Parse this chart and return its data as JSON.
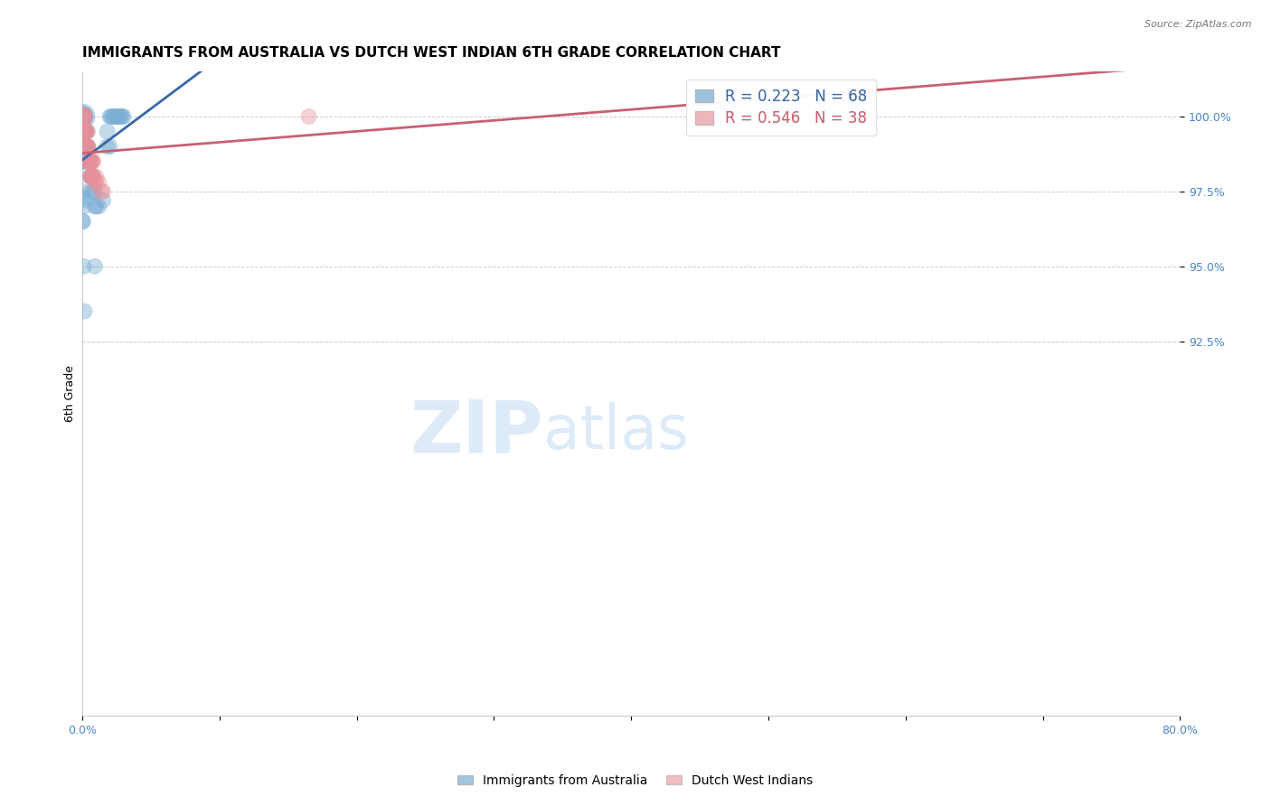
{
  "title": "IMMIGRANTS FROM AUSTRALIA VS DUTCH WEST INDIAN 6TH GRADE CORRELATION CHART",
  "source": "Source: ZipAtlas.com",
  "ylabel": "6th Grade",
  "xlim": [
    0.0,
    80.0
  ],
  "ylim": [
    80.0,
    101.5
  ],
  "yticks": [
    92.5,
    95.0,
    97.5,
    100.0
  ],
  "ytick_labels": [
    "92.5%",
    "95.0%",
    "97.5%",
    "100.0%"
  ],
  "legend_entries": [
    {
      "label": "R = 0.223   N = 68",
      "color": "#6fa8dc"
    },
    {
      "label": "R = 0.546   N = 38",
      "color": "#e06c7d"
    }
  ],
  "legend_labels": [
    "Immigrants from Australia",
    "Dutch West Indians"
  ],
  "blue_color": "#7bafd4",
  "pink_color": "#e8909a",
  "blue_line_color": "#3a67a8",
  "pink_line_color": "#c96070",
  "watermark_zip": "ZIP",
  "watermark_atlas": "atlas",
  "watermark_color": "#ddeaf7",
  "tick_color": "#4a86c8",
  "grid_color": "#cccccc",
  "title_fontsize": 11,
  "axis_label_fontsize": 9,
  "tick_fontsize": 9,
  "blue_scatter_x": [
    0.0,
    0.0,
    0.0,
    0.0,
    0.0,
    0.0,
    0.05,
    0.05,
    0.05,
    0.1,
    0.1,
    0.1,
    0.1,
    0.1,
    0.15,
    0.15,
    0.15,
    0.2,
    0.2,
    0.2,
    0.25,
    0.25,
    0.3,
    0.3,
    0.35,
    0.4,
    0.4,
    0.5,
    0.5,
    0.55,
    0.6,
    0.65,
    0.7,
    0.8,
    0.9,
    1.0,
    1.2,
    1.5,
    1.8,
    2.0,
    2.1,
    2.2,
    2.3,
    2.4,
    2.5,
    2.6,
    2.7,
    2.8,
    2.9,
    3.0,
    0.0,
    0.0,
    0.1,
    0.2,
    0.0,
    0.05,
    0.1,
    0.3,
    0.6,
    0.9,
    1.8,
    2.0,
    0.0,
    0.05,
    0.1,
    0.15,
    0.3,
    0.9
  ],
  "blue_scatter_y": [
    100.0,
    100.0,
    100.0,
    100.0,
    100.0,
    100.0,
    100.0,
    100.0,
    100.0,
    100.0,
    100.0,
    100.0,
    100.0,
    100.0,
    100.0,
    100.0,
    99.5,
    99.5,
    99.5,
    99.5,
    99.5,
    99.0,
    99.0,
    99.0,
    99.0,
    99.0,
    98.5,
    98.5,
    98.5,
    98.5,
    98.0,
    98.0,
    98.0,
    97.5,
    97.5,
    97.0,
    97.0,
    97.2,
    99.0,
    100.0,
    100.0,
    100.0,
    100.0,
    100.0,
    100.0,
    100.0,
    100.0,
    100.0,
    100.0,
    100.0,
    97.5,
    97.3,
    97.0,
    97.2,
    98.5,
    98.5,
    98.5,
    99.5,
    97.5,
    97.0,
    99.5,
    99.0,
    96.5,
    96.5,
    95.0,
    93.5,
    99.5,
    95.0
  ],
  "blue_scatter_size": [
    80,
    60,
    50,
    40,
    35,
    30,
    40,
    35,
    30,
    40,
    35,
    30,
    30,
    30,
    30,
    30,
    30,
    30,
    30,
    30,
    30,
    30,
    30,
    30,
    30,
    30,
    30,
    30,
    30,
    30,
    30,
    30,
    30,
    30,
    30,
    30,
    30,
    30,
    30,
    30,
    30,
    30,
    30,
    30,
    30,
    30,
    30,
    30,
    30,
    30,
    30,
    30,
    30,
    30,
    30,
    30,
    30,
    30,
    30,
    30,
    30,
    30,
    30,
    30,
    30,
    30,
    30,
    30
  ],
  "pink_scatter_x": [
    0.0,
    0.0,
    0.05,
    0.1,
    0.1,
    0.15,
    0.2,
    0.2,
    0.25,
    0.3,
    0.3,
    0.35,
    0.4,
    0.4,
    0.5,
    0.5,
    0.6,
    0.7,
    0.8,
    1.0,
    1.2,
    1.4,
    0.1,
    0.2,
    0.3,
    0.4,
    0.5,
    0.6,
    0.7,
    0.8,
    0.9,
    1.0,
    1.5,
    0.5,
    0.6,
    0.7,
    0.8,
    16.5
  ],
  "pink_scatter_y": [
    100.0,
    100.0,
    100.0,
    100.0,
    100.0,
    99.5,
    99.5,
    99.5,
    99.0,
    99.0,
    99.0,
    99.0,
    99.0,
    99.0,
    98.5,
    98.5,
    98.5,
    98.5,
    98.0,
    98.0,
    97.8,
    97.5,
    99.5,
    99.5,
    99.5,
    99.5,
    98.0,
    98.0,
    98.0,
    98.0,
    97.8,
    97.8,
    97.5,
    98.5,
    98.5,
    98.5,
    98.5,
    100.0
  ],
  "pink_scatter_size": [
    50,
    35,
    30,
    40,
    30,
    30,
    30,
    30,
    30,
    30,
    30,
    30,
    30,
    30,
    30,
    30,
    30,
    30,
    30,
    30,
    30,
    30,
    30,
    30,
    30,
    30,
    30,
    30,
    30,
    30,
    30,
    30,
    30,
    30,
    30,
    30,
    30,
    30
  ]
}
